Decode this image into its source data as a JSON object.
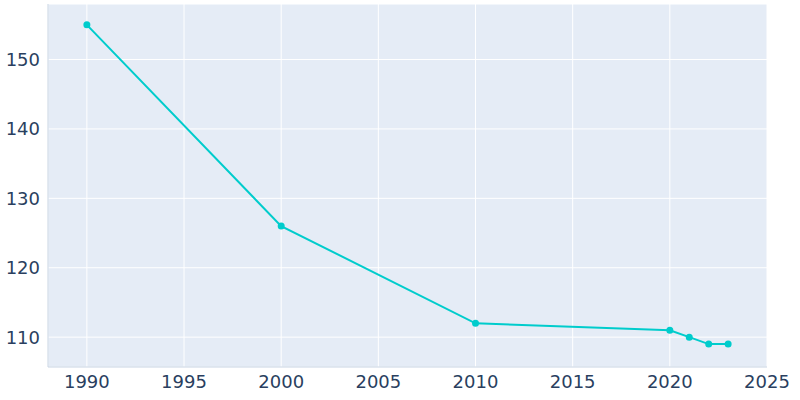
{
  "chart_data": {
    "type": "line",
    "x": [
      1990,
      2000,
      2010,
      2020,
      2021,
      2022,
      2023
    ],
    "values": [
      155,
      126,
      112,
      111,
      110,
      109,
      109
    ],
    "color": "#00cccc",
    "marker": "circle",
    "xlim": [
      1988,
      2025
    ],
    "xticks": [
      1990,
      1995,
      2000,
      2005,
      2010,
      2015,
      2020,
      2025
    ],
    "ylim": [
      105.7,
      158
    ],
    "yticks": [
      110,
      120,
      130,
      140,
      150
    ],
    "grid": true
  }
}
